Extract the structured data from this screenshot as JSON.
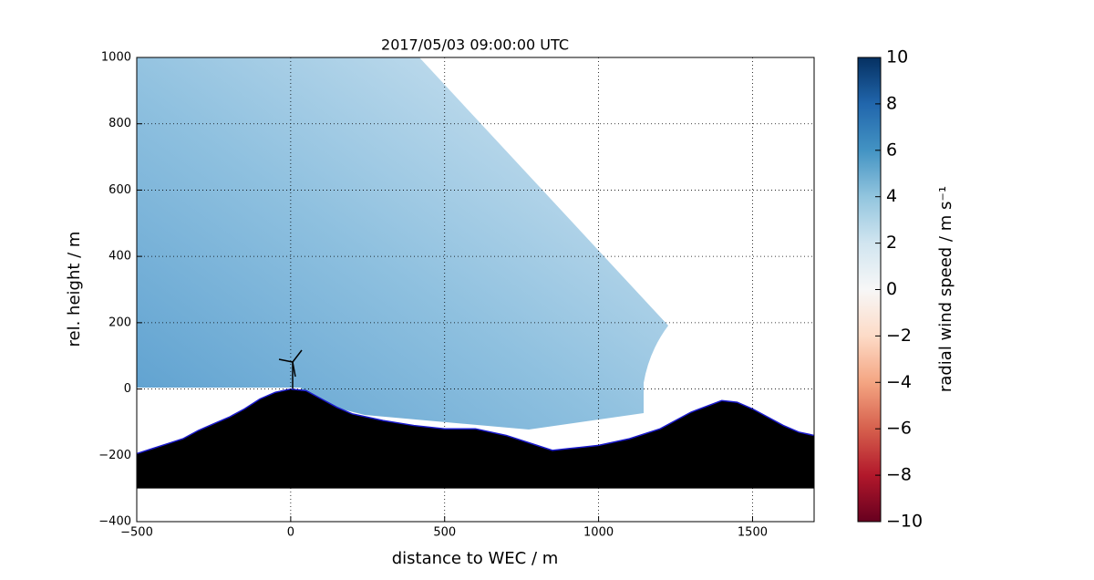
{
  "chart_data": {
    "type": "terrain",
    "title": "2017/05/03 09:00:00 UTC",
    "xlabel": "distance to WEC / m",
    "ylabel": "rel. height / m",
    "xlim": [
      -500,
      1700
    ],
    "ylim": [
      -400,
      1000
    ],
    "xticks": [
      {
        "value": -500,
        "label": "−500"
      },
      0,
      500,
      1000,
      1500
    ],
    "yticks": [
      {
        "value": -400,
        "label": "−400"
      },
      {
        "value": -200,
        "label": "−200"
      },
      0,
      200,
      400,
      600,
      800,
      1000
    ],
    "grid": true,
    "terrain": {
      "x": [
        -500,
        -450,
        -400,
        -350,
        -300,
        -250,
        -200,
        -150,
        -100,
        -50,
        0,
        50,
        100,
        150,
        200,
        300,
        400,
        500,
        600,
        700,
        800,
        850,
        900,
        1000,
        1100,
        1200,
        1300,
        1400,
        1450,
        1500,
        1600,
        1650,
        1700
      ],
      "y": [
        -195,
        -180,
        -165,
        -150,
        -125,
        -105,
        -85,
        -60,
        -30,
        -10,
        0,
        -5,
        -30,
        -55,
        -75,
        -95,
        -110,
        -120,
        -120,
        -140,
        -170,
        -185,
        -180,
        -170,
        -150,
        -120,
        -70,
        -35,
        -40,
        -60,
        -110,
        -130,
        -140
      ],
      "base": -300,
      "color": "#000000",
      "edge_color": "#1a1acc"
    },
    "colorbar": {
      "label": "radial wind speed / m s⁻¹",
      "clim": [
        -10,
        10
      ],
      "ticks": [
        {
          "value": -10,
          "label": "−10"
        },
        {
          "value": -8,
          "label": "−8"
        },
        {
          "value": -6,
          "label": "−6"
        },
        {
          "value": -4,
          "label": "−4"
        },
        {
          "value": -2,
          "label": "−2"
        },
        0,
        2,
        4,
        6,
        8,
        10
      ]
    }
  }
}
